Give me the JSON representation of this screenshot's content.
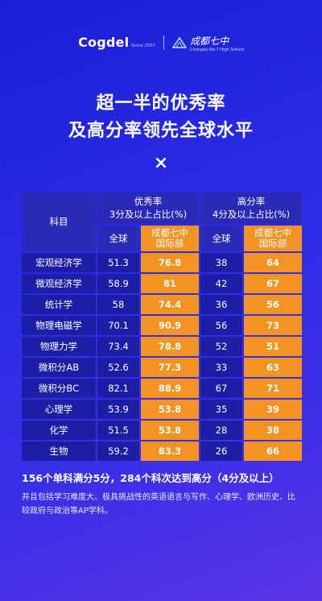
{
  "logos": {
    "cogdel_name": "Cogdel",
    "cogdel_sub": "Since 2007",
    "school_name": "成都七中",
    "school_sub": "Chengdu No.7 High School"
  },
  "title_line1": "超一半的优秀率",
  "title_line2": "及高分率领先全球水平",
  "times_mark": "×",
  "table": {
    "subject_header": "科目",
    "excellent_header_l1": "优秀率",
    "excellent_header_l2": "3分及以上占比(%)",
    "high_header_l1": "高分率",
    "high_header_l2": "4分及以上占比(%)",
    "global_label": "全球",
    "school_label_l1": "成都七中",
    "school_label_l2": "国际部",
    "rows": [
      {
        "subject": "宏观经济学",
        "exc_global": "51.3",
        "exc_school": "76.8",
        "high_global": "38",
        "high_school": "64"
      },
      {
        "subject": "微观经济学",
        "exc_global": "58.9",
        "exc_school": "81",
        "high_global": "42",
        "high_school": "67"
      },
      {
        "subject": "统计学",
        "exc_global": "58",
        "exc_school": "74.4",
        "high_global": "36",
        "high_school": "56"
      },
      {
        "subject": "物理电磁学",
        "exc_global": "70.1",
        "exc_school": "90.9",
        "high_global": "56",
        "high_school": "73"
      },
      {
        "subject": "物理力学",
        "exc_global": "73.4",
        "exc_school": "78.8",
        "high_global": "52",
        "high_school": "51"
      },
      {
        "subject": "微积分AB",
        "exc_global": "52.6",
        "exc_school": "77.3",
        "high_global": "33",
        "high_school": "63"
      },
      {
        "subject": "微积分BC",
        "exc_global": "82.1",
        "exc_school": "88.9",
        "high_global": "67",
        "high_school": "71"
      },
      {
        "subject": "心理学",
        "exc_global": "53.9",
        "exc_school": "53.8",
        "high_global": "35",
        "high_school": "39"
      },
      {
        "subject": "化学",
        "exc_global": "51.5",
        "exc_school": "53.8",
        "high_global": "28",
        "high_school": "38"
      },
      {
        "subject": "生物",
        "exc_global": "59.2",
        "exc_school": "83.3",
        "high_global": "26",
        "high_school": "66"
      }
    ]
  },
  "summary": "156个单科满分5分，284个科次达到高分（4分及以上）",
  "detail": "并且包括学习难度大、极具挑战性的英语语言与写作、心理学、欧洲历史、比较政府与政治等AP学科。"
}
